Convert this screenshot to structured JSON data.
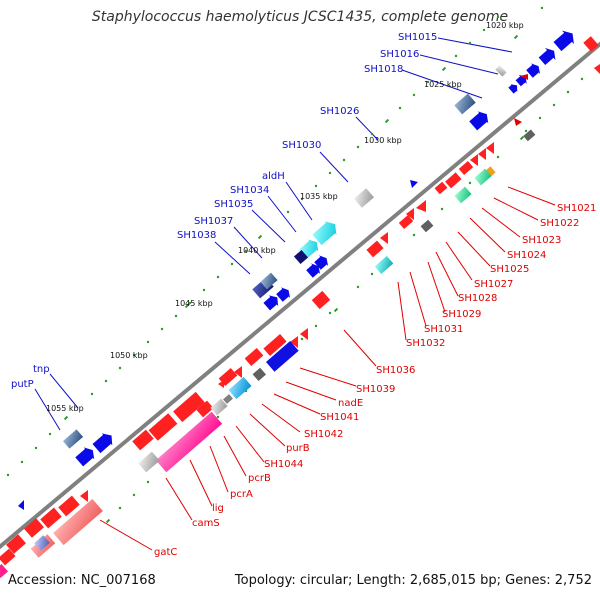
{
  "title": "Staphylococcus haemolyticus JCSC1435, complete genome",
  "footer": {
    "accession": "Accession: NC_007168",
    "summary": "Topology: circular; Length: 2,685,015 bp; Genes: 2,752"
  },
  "kbp_labels": [
    "1020 kbp",
    "1025 kbp",
    "1030 kbp",
    "1035 kbp",
    "1040 kbp",
    "1045 kbp",
    "1050 kbp",
    "1055 kbp"
  ],
  "top_labels": [
    "SH1015",
    "SH1016",
    "SH1018",
    "SH1026",
    "SH1030",
    "aldH",
    "SH1034",
    "SH1035",
    "SH1037",
    "SH1038",
    "tnp",
    "putP"
  ],
  "bottom_labels": [
    "SH1021",
    "SH1022",
    "SH1023",
    "SH1024",
    "SH1025",
    "SH1027",
    "SH1028",
    "SH1029",
    "SH1031",
    "SH1032",
    "SH1036",
    "SH1039",
    "nadE",
    "SH1041",
    "SH1042",
    "purB",
    "SH1044",
    "pcrB",
    "pcrA",
    "lig",
    "camS",
    "gatC"
  ],
  "colors": {
    "forward_label": "#1010c8",
    "reverse_label": "#e00000",
    "backbone": "#808080",
    "tick": "#2a9a2a"
  }
}
